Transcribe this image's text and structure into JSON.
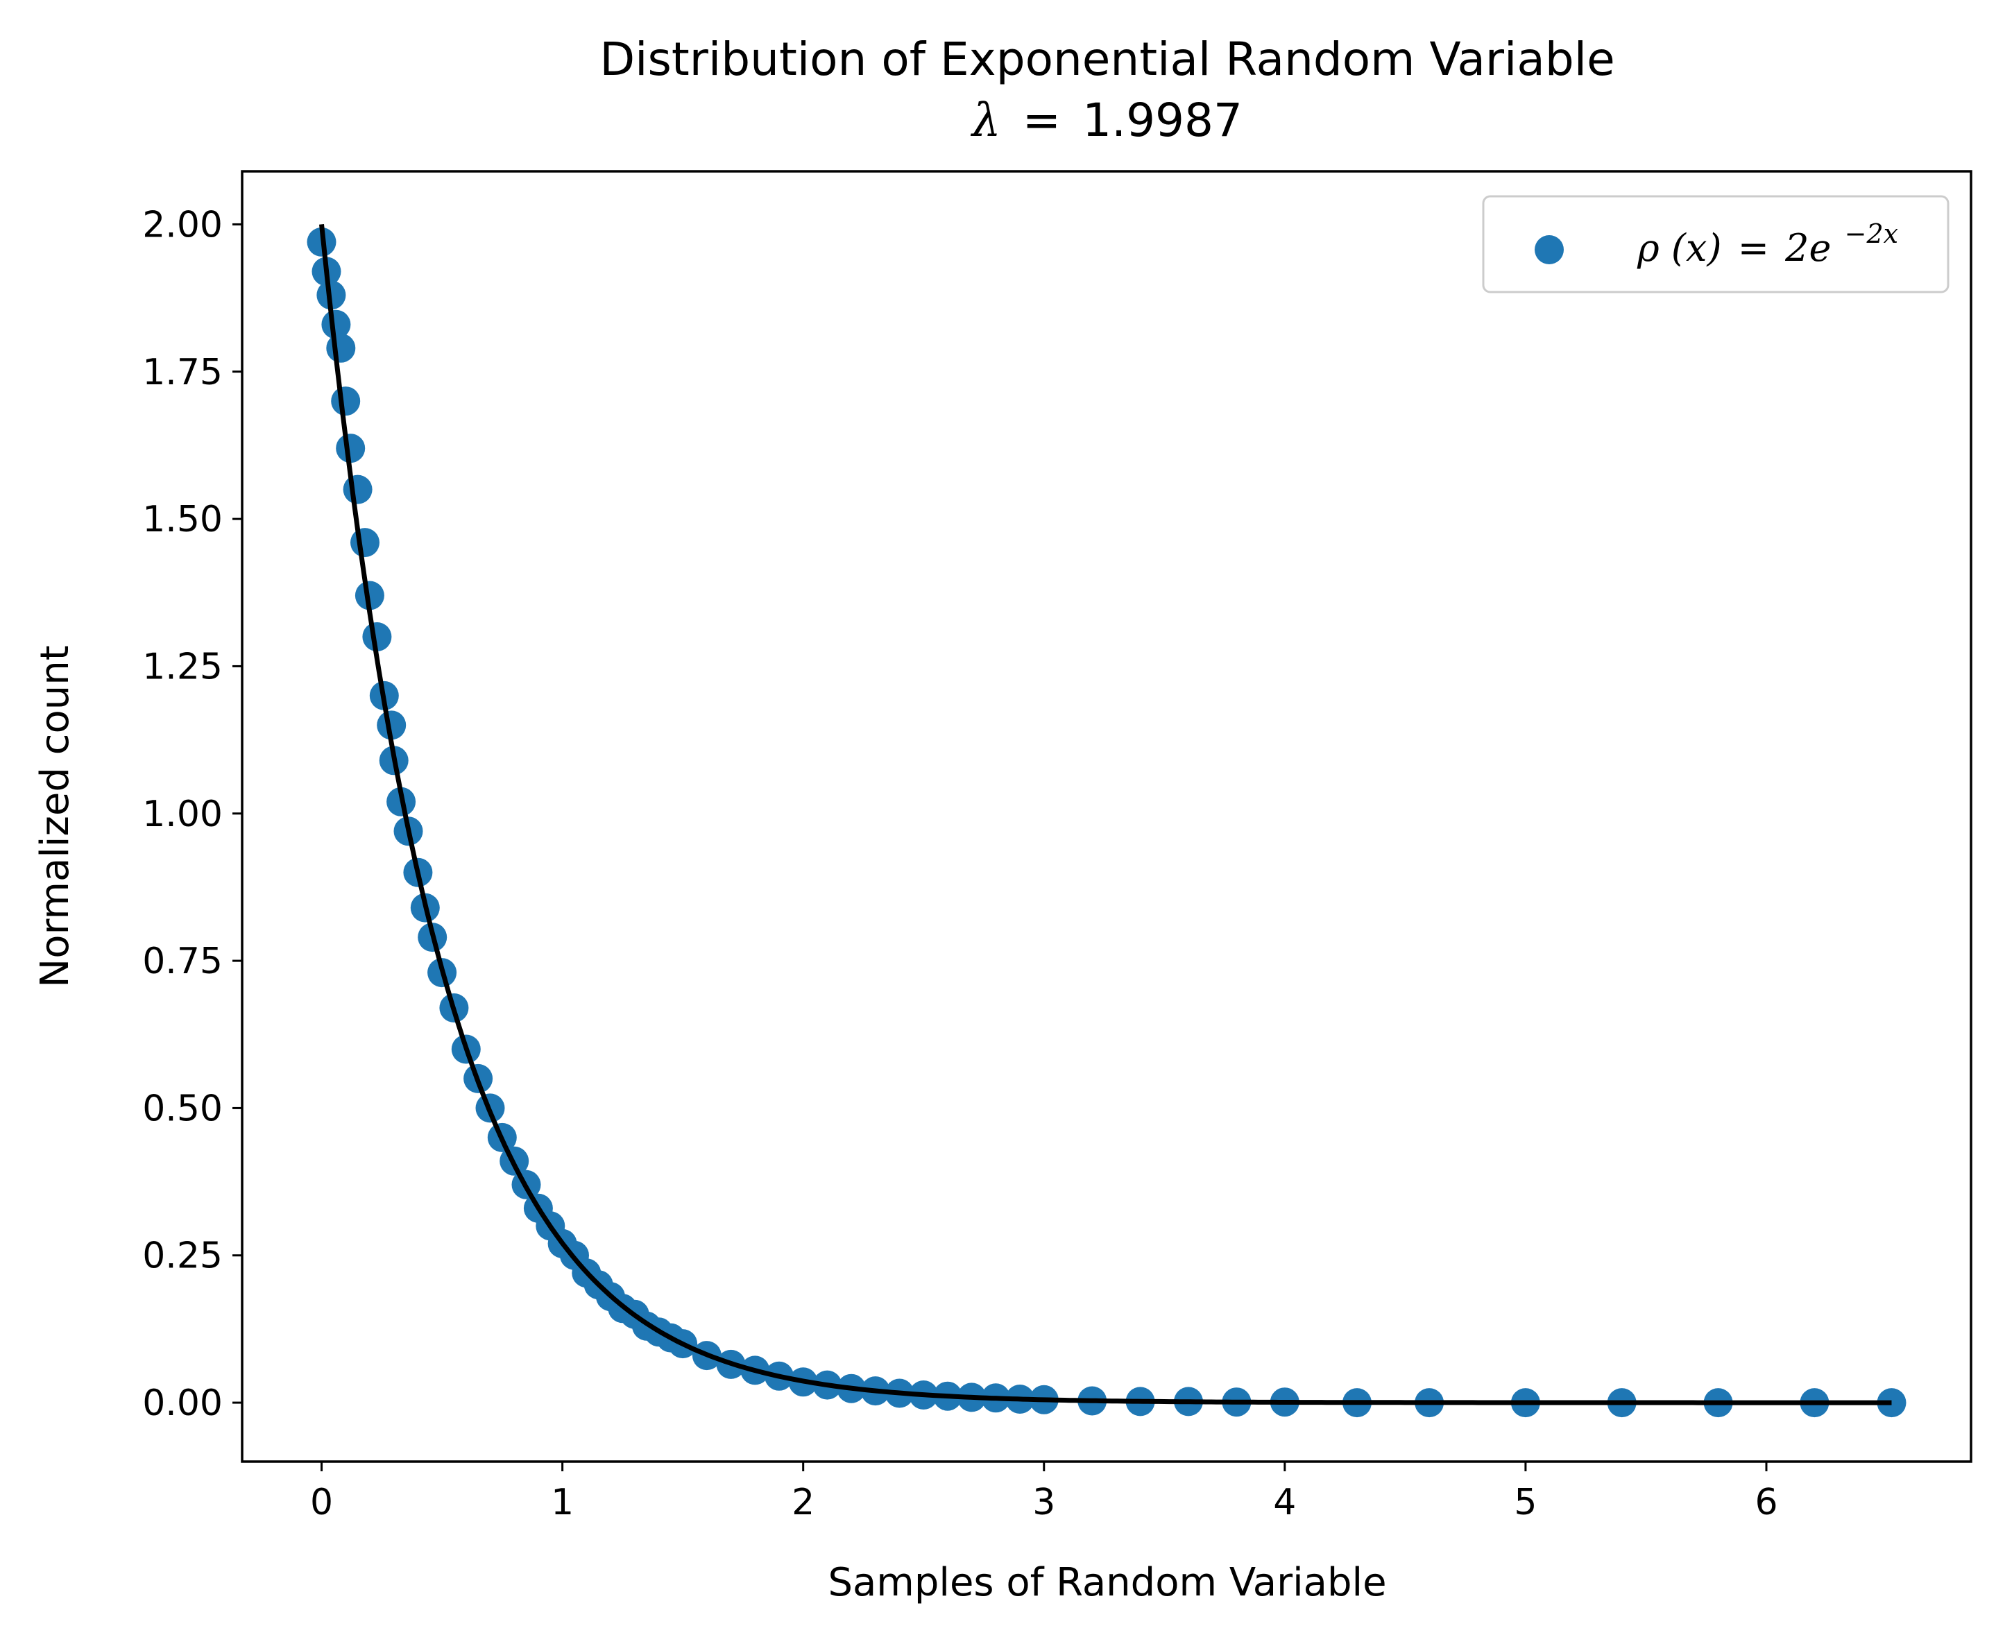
{
  "chart_data": {
    "type": "scatter",
    "title": "Distribution of Exponential Random Variable",
    "subtitle": {
      "symbol": "λ",
      "equals": "=",
      "value": "1.9987"
    },
    "xlabel": "Samples of Random Variable",
    "ylabel": "Normalized count",
    "xlim": [
      -0.33,
      6.85
    ],
    "ylim": [
      -0.1,
      2.09
    ],
    "xticks": [
      0,
      1,
      2,
      3,
      4,
      5,
      6
    ],
    "xtick_labels": [
      "0",
      "1",
      "2",
      "3",
      "4",
      "5",
      "6"
    ],
    "yticks": [
      0.0,
      0.25,
      0.5,
      0.75,
      1.0,
      1.25,
      1.5,
      1.75,
      2.0
    ],
    "ytick_labels": [
      "0.00",
      "0.25",
      "0.50",
      "0.75",
      "1.00",
      "1.25",
      "1.50",
      "1.75",
      "2.00"
    ],
    "grid": false,
    "legend": {
      "placement": "top-right",
      "entries": [
        {
          "rho": "ρ",
          "arg": "(x)",
          "equals": "=",
          "coef": "2e",
          "exponent": "−2x",
          "marker": "circle",
          "color": "#1f77b4"
        }
      ]
    },
    "series": [
      {
        "kind": "scatter",
        "color": "#1f77b4",
        "points": [
          [
            0.0,
            1.97
          ],
          [
            0.02,
            1.92
          ],
          [
            0.04,
            1.88
          ],
          [
            0.06,
            1.83
          ],
          [
            0.08,
            1.79
          ],
          [
            0.1,
            1.7
          ],
          [
            0.12,
            1.62
          ],
          [
            0.15,
            1.55
          ],
          [
            0.18,
            1.46
          ],
          [
            0.2,
            1.37
          ],
          [
            0.23,
            1.3
          ],
          [
            0.26,
            1.2
          ],
          [
            0.29,
            1.15
          ],
          [
            0.3,
            1.09
          ],
          [
            0.33,
            1.02
          ],
          [
            0.36,
            0.97
          ],
          [
            0.4,
            0.9
          ],
          [
            0.43,
            0.84
          ],
          [
            0.46,
            0.79
          ],
          [
            0.5,
            0.73
          ],
          [
            0.55,
            0.67
          ],
          [
            0.6,
            0.6
          ],
          [
            0.65,
            0.55
          ],
          [
            0.7,
            0.5
          ],
          [
            0.75,
            0.45
          ],
          [
            0.8,
            0.41
          ],
          [
            0.85,
            0.37
          ],
          [
            0.9,
            0.33
          ],
          [
            0.95,
            0.3
          ],
          [
            1.0,
            0.27
          ],
          [
            1.05,
            0.25
          ],
          [
            1.1,
            0.22
          ],
          [
            1.15,
            0.2
          ],
          [
            1.2,
            0.18
          ],
          [
            1.25,
            0.16
          ],
          [
            1.3,
            0.15
          ],
          [
            1.35,
            0.13
          ],
          [
            1.4,
            0.12
          ],
          [
            1.45,
            0.11
          ],
          [
            1.5,
            0.1
          ],
          [
            1.6,
            0.08
          ],
          [
            1.7,
            0.065
          ],
          [
            1.8,
            0.055
          ],
          [
            1.9,
            0.045
          ],
          [
            2.0,
            0.035
          ],
          [
            2.1,
            0.03
          ],
          [
            2.2,
            0.024
          ],
          [
            2.3,
            0.02
          ],
          [
            2.4,
            0.016
          ],
          [
            2.5,
            0.013
          ],
          [
            2.6,
            0.011
          ],
          [
            2.7,
            0.009
          ],
          [
            2.8,
            0.008
          ],
          [
            2.9,
            0.006
          ],
          [
            3.0,
            0.005
          ],
          [
            3.2,
            0.003
          ],
          [
            3.4,
            0.002
          ],
          [
            3.6,
            0.002
          ],
          [
            3.8,
            0.001
          ],
          [
            4.0,
            0.001
          ],
          [
            4.3,
            0.0
          ],
          [
            4.6,
            0.0
          ],
          [
            5.0,
            0.0
          ],
          [
            5.4,
            0.0
          ],
          [
            5.8,
            0.0
          ],
          [
            6.2,
            0.0
          ],
          [
            6.52,
            0.0
          ]
        ]
      },
      {
        "kind": "line",
        "color": "#000000",
        "function": "2*exp(-2x)",
        "x_range": [
          0.0,
          6.52
        ]
      }
    ]
  }
}
